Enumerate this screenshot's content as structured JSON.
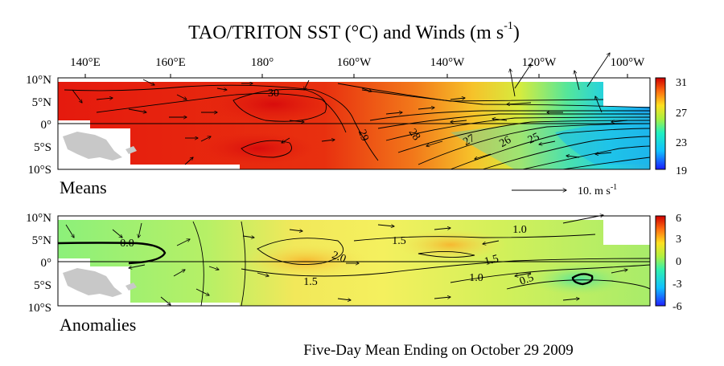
{
  "title": "TAO/TRITON SST (°C) and Winds (m s",
  "title_sup": "-1",
  "title_close": ")",
  "lon_ticks": [
    "140°E",
    "160°E",
    "180°",
    "160°W",
    "140°W",
    "120°W",
    "100°W"
  ],
  "lat_ticks": [
    "10°N",
    "5°N",
    "0°",
    "5°S",
    "10°S"
  ],
  "means": {
    "label": "Means",
    "colorbar_ticks": [
      "31",
      "27",
      "23",
      "19"
    ],
    "colorbar_range": [
      19,
      31
    ],
    "contour_labels": [
      "30",
      "29",
      "28",
      "27",
      "26",
      "25"
    ],
    "scale_arrow_label": "10.  m s",
    "scale_arrow_sup": "-1"
  },
  "anomalies": {
    "label": "Anomalies",
    "colorbar_ticks": [
      "6",
      "3",
      "0",
      "-3",
      "-6"
    ],
    "colorbar_range": [
      -6,
      6
    ],
    "contour_labels": [
      "0.0",
      "1.5",
      "2.0",
      "1.0",
      "1.5",
      "1.0",
      "0.5",
      "1.5"
    ]
  },
  "footer": "Five-Day Mean Ending on October 29 2009"
}
